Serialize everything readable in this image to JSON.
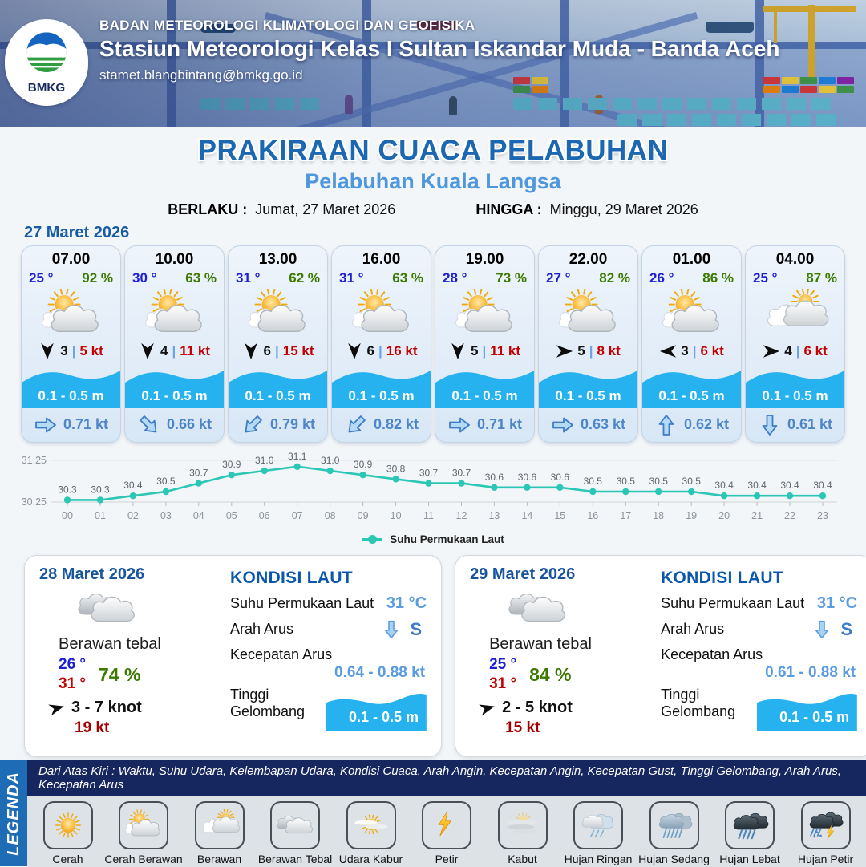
{
  "header": {
    "org": "BADAN METEOROLOGI KLIMATOLOGI DAN GEOFISIKA",
    "station": "Stasiun Meteorologi Kelas I Sultan Iskandar Muda - Banda Aceh",
    "email": "stamet.blangbintang@bmkg.go.id",
    "logo_text": "BMKG"
  },
  "title": {
    "main": "PRAKIRAAN CUACA PELABUHAN",
    "sub": "Pelabuhan Kuala Langsa",
    "berlaku_label": "BERLAKU :",
    "berlaku_value": "Jumat, 27 Maret 2026",
    "hingga_label": "HINGGA :",
    "hingga_value": "Minggu, 29 Maret 2026"
  },
  "forecast_date": "27 Maret 2026",
  "labels": {
    "wind_separator": "|",
    "kondisi": {
      "title": "KONDISI LAUT",
      "sst": "Suhu Permukaan Laut",
      "arah_arus": "Arah Arus",
      "kecepatan_arus": "Kecepatan Arus",
      "tinggi_gelombang": "Tinggi Gelombang"
    }
  },
  "forecast_cards": [
    {
      "time": "07.00",
      "temp": "25 °",
      "humidity": "92 %",
      "icon": "cerah-berawan",
      "wind_deg": 180,
      "wind_speed": "3",
      "gust": "5 kt",
      "wave": "0.1 - 0.5 m",
      "current_deg": 0,
      "current": "0.71 kt"
    },
    {
      "time": "10.00",
      "temp": "30 °",
      "humidity": "63 %",
      "icon": "cerah-berawan",
      "wind_deg": 180,
      "wind_speed": "4",
      "gust": "11 kt",
      "wave": "0.1 - 0.5 m",
      "current_deg": 45,
      "current": "0.66 kt"
    },
    {
      "time": "13.00",
      "temp": "31 °",
      "humidity": "62 %",
      "icon": "cerah-berawan",
      "wind_deg": 180,
      "wind_speed": "6",
      "gust": "15 kt",
      "wave": "0.1 - 0.5 m",
      "current_deg": 135,
      "current": "0.79 kt"
    },
    {
      "time": "16.00",
      "temp": "31 °",
      "humidity": "63 %",
      "icon": "cerah-berawan",
      "wind_deg": 180,
      "wind_speed": "6",
      "gust": "16 kt",
      "wave": "0.1 - 0.5 m",
      "current_deg": 135,
      "current": "0.82 kt"
    },
    {
      "time": "19.00",
      "temp": "28 °",
      "humidity": "73 %",
      "icon": "cerah-berawan",
      "wind_deg": 180,
      "wind_speed": "5",
      "gust": "11 kt",
      "wave": "0.1 - 0.5 m",
      "current_deg": 0,
      "current": "0.71 kt"
    },
    {
      "time": "22.00",
      "temp": "27 °",
      "humidity": "82 %",
      "icon": "cerah-berawan",
      "wind_deg": 90,
      "wind_speed": "5",
      "gust": "8 kt",
      "wave": "0.1 - 0.5 m",
      "current_deg": 0,
      "current": "0.63 kt"
    },
    {
      "time": "01.00",
      "temp": "26 °",
      "humidity": "86 %",
      "icon": "cerah-berawan",
      "wind_deg": 270,
      "wind_speed": "3",
      "gust": "6 kt",
      "wave": "0.1 - 0.5 m",
      "current_deg": -90,
      "current": "0.62 kt"
    },
    {
      "time": "04.00",
      "temp": "25 °",
      "humidity": "87 %",
      "icon": "berawan",
      "wind_deg": 90,
      "wind_speed": "4",
      "gust": "6 kt",
      "wave": "0.1 - 0.5 m",
      "current_deg": 90,
      "current": "0.61 kt"
    }
  ],
  "chart_data": {
    "type": "line",
    "title": "",
    "xlabel": "",
    "ylabel": "",
    "x_labels": [
      "00",
      "01",
      "02",
      "03",
      "04",
      "05",
      "06",
      "07",
      "08",
      "09",
      "10",
      "11",
      "12",
      "13",
      "14",
      "15",
      "16",
      "17",
      "18",
      "19",
      "20",
      "21",
      "22",
      "23"
    ],
    "series": [
      {
        "name": "Suhu Permukaan Laut",
        "color": "#2bc7b4",
        "values": [
          30.3,
          30.3,
          30.4,
          30.5,
          30.7,
          30.9,
          31.0,
          31.1,
          31.0,
          30.9,
          30.8,
          30.7,
          30.7,
          30.6,
          30.6,
          30.6,
          30.5,
          30.5,
          30.5,
          30.5,
          30.4,
          30.4,
          30.4,
          30.4
        ]
      }
    ],
    "ylim": [
      30.25,
      31.25
    ],
    "y_ticks": [
      "30.25",
      "31.25"
    ],
    "grid": true,
    "legend_position": "bottom"
  },
  "day_cards": [
    {
      "date": "28 Maret 2026",
      "icon": "berawan-tebal",
      "condition": "Berawan tebal",
      "temp_min": "26 °",
      "temp_max": "31 °",
      "humidity": "74 %",
      "wind_deg": 75,
      "wind_range": "3 - 7 knot",
      "gust": "19 kt",
      "sst_value": "31 °C",
      "arah_deg": 90,
      "arah_value": "S",
      "kecepatan_value": "0.64 - 0.88 kt",
      "gelombang_value": "0.1 - 0.5 m"
    },
    {
      "date": "29 Maret 2026",
      "icon": "berawan-tebal",
      "condition": "Berawan tebal",
      "temp_min": "25 °",
      "temp_max": "31 °",
      "humidity": "84 %",
      "wind_deg": 75,
      "wind_range": "2 - 5 knot",
      "gust": "15 kt",
      "sst_value": "31 °C",
      "arah_deg": 90,
      "arah_value": "S",
      "kecepatan_value": "0.61 - 0.88 kt",
      "gelombang_value": "0.1 - 0.5 m"
    }
  ],
  "legend": {
    "side_label": "LEGENDA",
    "note": "Dari Atas Kiri : Waktu, Suhu Udara, Kelembapan Udara, Kondisi Cuaca, Arah Angin, Kecepatan Angin, Kecepatan Gust, Tinggi Gelombang, Arah Arus, Kecepatan Arus",
    "items": [
      {
        "label": "Cerah",
        "icon": "cerah"
      },
      {
        "label": "Cerah Berawan",
        "icon": "cerah-berawan"
      },
      {
        "label": "Berawan",
        "icon": "berawan"
      },
      {
        "label": "Berawan Tebal",
        "icon": "berawan-tebal"
      },
      {
        "label": "Udara Kabur",
        "icon": "udara-kabur"
      },
      {
        "label": "Petir",
        "icon": "petir"
      },
      {
        "label": "Kabut",
        "icon": "kabut"
      },
      {
        "label": "Hujan Ringan",
        "icon": "hujan-ringan"
      },
      {
        "label": "Hujan Sedang",
        "icon": "hujan-sedang"
      },
      {
        "label": "Hujan Lebat",
        "icon": "hujan-lebat"
      },
      {
        "label": "Hujan Petir",
        "icon": "hujan-petir"
      }
    ]
  },
  "colors": {
    "accent_blue": "#1b67b2",
    "light_blue": "#4e97dd",
    "temp_blue": "#1f1fd6",
    "humidity_green": "#3c7a00",
    "gust_red": "#c40000",
    "wave_cyan": "#25b2ef",
    "current_blue": "#4d86c8",
    "sea_value_blue": "#5b9be0",
    "chart_teal": "#2bc7b4",
    "legend_sidebar_blue": "#1d6cb5",
    "note_navy": "#16265e"
  }
}
